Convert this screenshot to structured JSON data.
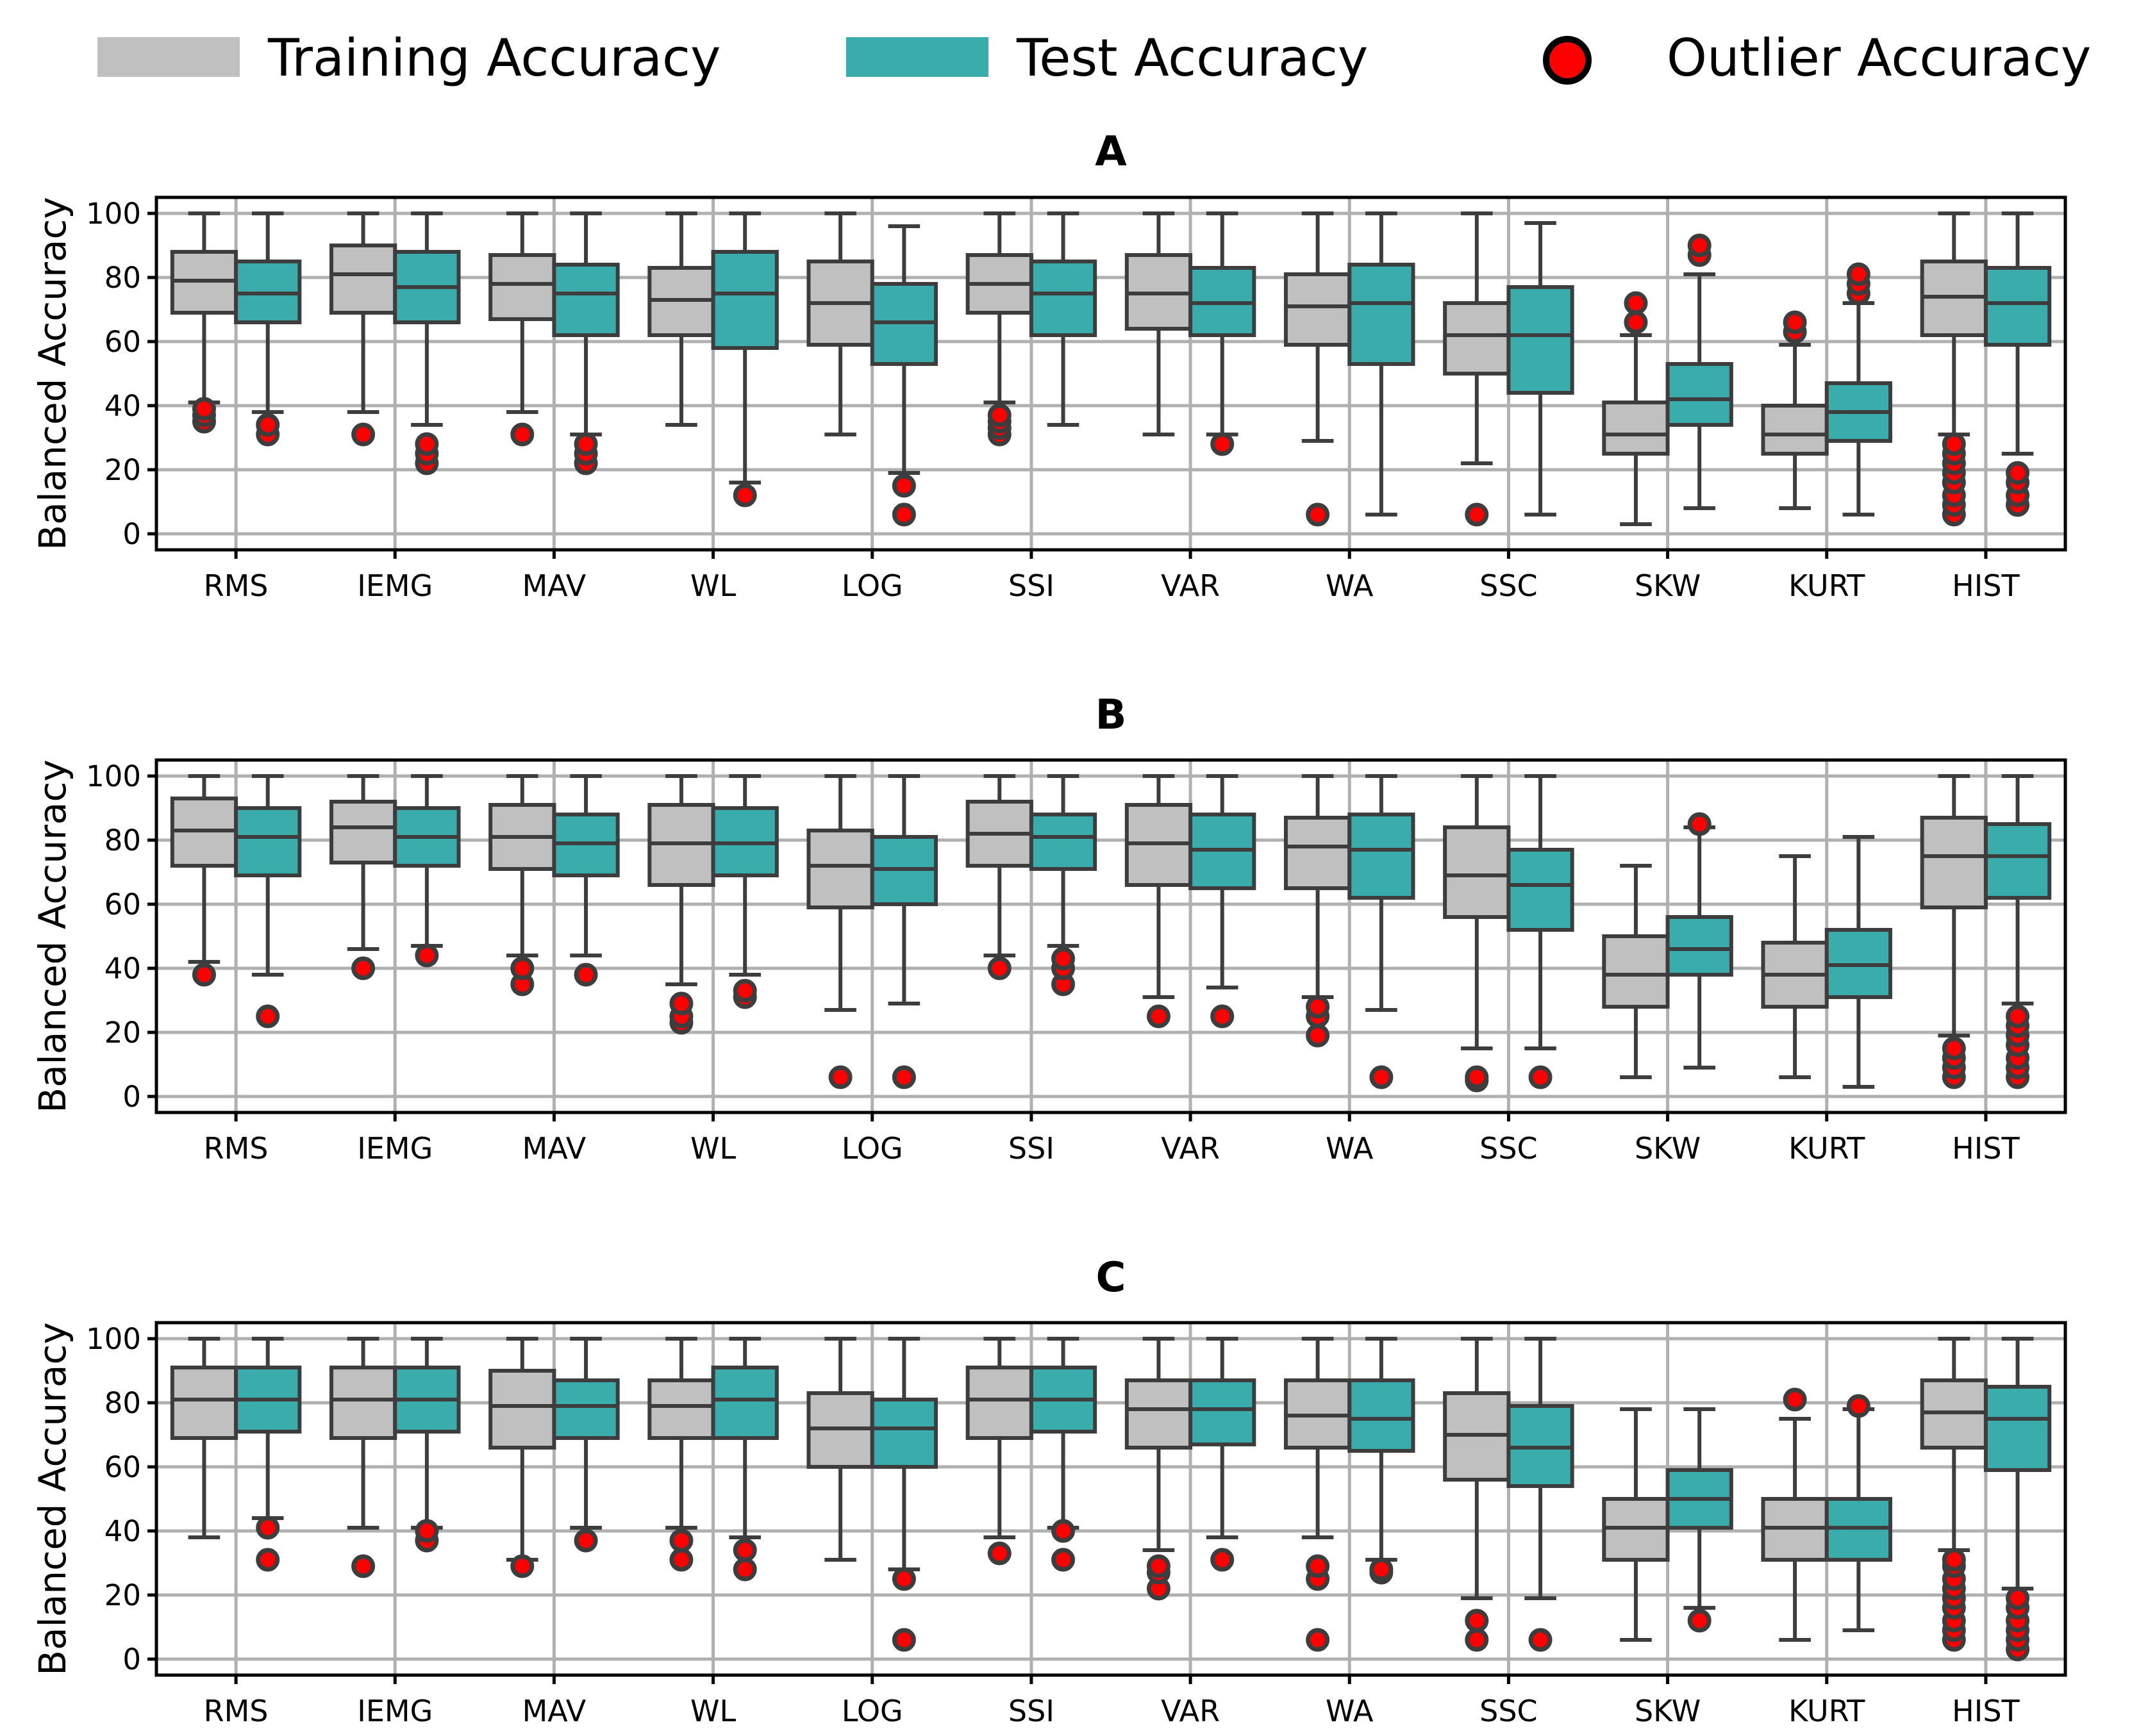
{
  "legend": {
    "train_label": "Training Accuracy",
    "test_label": "Test Accuracy",
    "outlier_label": "Outlier Accuracy"
  },
  "colors": {
    "train": "#c0c0c0",
    "test": "#3aacac",
    "outlier": "#ff0000",
    "line": "#3d3d3d",
    "grid": "#b0b0b0"
  },
  "chart_data": [
    {
      "type": "box",
      "title": "A",
      "ylabel": "Balanced Accuracy",
      "ylim": [
        -5,
        105
      ],
      "yticks": [
        0,
        20,
        40,
        60,
        80,
        100
      ],
      "categories": [
        "RMS",
        "IEMG",
        "MAV",
        "WL",
        "LOG",
        "SSI",
        "VAR",
        "WA",
        "SSC",
        "SKW",
        "KURT",
        "HIST"
      ],
      "series": [
        {
          "name": "Training Accuracy",
          "boxes": [
            {
              "lo": 41,
              "q1": 69,
              "med": 79,
              "q3": 88,
              "hi": 100,
              "out": [
                35,
                37,
                39
              ]
            },
            {
              "lo": 38,
              "q1": 69,
              "med": 81,
              "q3": 90,
              "hi": 100,
              "out": [
                31
              ]
            },
            {
              "lo": 38,
              "q1": 67,
              "med": 78,
              "q3": 87,
              "hi": 100,
              "out": [
                31
              ]
            },
            {
              "lo": 34,
              "q1": 62,
              "med": 73,
              "q3": 83,
              "hi": 100,
              "out": []
            },
            {
              "lo": 31,
              "q1": 59,
              "med": 72,
              "q3": 85,
              "hi": 100,
              "out": []
            },
            {
              "lo": 41,
              "q1": 69,
              "med": 78,
              "q3": 87,
              "hi": 100,
              "out": [
                31,
                33,
                35,
                37
              ]
            },
            {
              "lo": 31,
              "q1": 64,
              "med": 75,
              "q3": 87,
              "hi": 100,
              "out": []
            },
            {
              "lo": 29,
              "q1": 59,
              "med": 71,
              "q3": 81,
              "hi": 100,
              "out": [
                6
              ]
            },
            {
              "lo": 22,
              "q1": 50,
              "med": 62,
              "q3": 72,
              "hi": 100,
              "out": [
                6
              ]
            },
            {
              "lo": 3,
              "q1": 25,
              "med": 31,
              "q3": 41,
              "hi": 62,
              "out": [
                66,
                72
              ]
            },
            {
              "lo": 8,
              "q1": 25,
              "med": 31,
              "q3": 40,
              "hi": 59,
              "out": [
                63,
                66
              ]
            },
            {
              "lo": 31,
              "q1": 62,
              "med": 74,
              "q3": 85,
              "hi": 100,
              "out": [
                6,
                9,
                12,
                16,
                19,
                22,
                25,
                28
              ]
            }
          ]
        },
        {
          "name": "Test Accuracy",
          "boxes": [
            {
              "lo": 38,
              "q1": 66,
              "med": 75,
              "q3": 85,
              "hi": 100,
              "out": [
                31,
                34
              ]
            },
            {
              "lo": 34,
              "q1": 66,
              "med": 77,
              "q3": 88,
              "hi": 100,
              "out": [
                22,
                25,
                28
              ]
            },
            {
              "lo": 31,
              "q1": 62,
              "med": 75,
              "q3": 84,
              "hi": 100,
              "out": [
                22,
                25,
                28
              ]
            },
            {
              "lo": 16,
              "q1": 58,
              "med": 75,
              "q3": 88,
              "hi": 100,
              "out": [
                12
              ]
            },
            {
              "lo": 19,
              "q1": 53,
              "med": 66,
              "q3": 78,
              "hi": 96,
              "out": [
                6,
                15
              ]
            },
            {
              "lo": 34,
              "q1": 62,
              "med": 75,
              "q3": 85,
              "hi": 100,
              "out": []
            },
            {
              "lo": 31,
              "q1": 62,
              "med": 72,
              "q3": 83,
              "hi": 100,
              "out": [
                28
              ]
            },
            {
              "lo": 6,
              "q1": 53,
              "med": 72,
              "q3": 84,
              "hi": 100,
              "out": []
            },
            {
              "lo": 6,
              "q1": 44,
              "med": 62,
              "q3": 77,
              "hi": 97,
              "out": []
            },
            {
              "lo": 8,
              "q1": 34,
              "med": 42,
              "q3": 53,
              "hi": 81,
              "out": [
                87,
                90
              ]
            },
            {
              "lo": 6,
              "q1": 29,
              "med": 38,
              "q3": 47,
              "hi": 72,
              "out": [
                75,
                78,
                81
              ]
            },
            {
              "lo": 25,
              "q1": 59,
              "med": 72,
              "q3": 83,
              "hi": 100,
              "out": [
                9,
                12,
                16,
                19
              ]
            }
          ]
        }
      ]
    },
    {
      "type": "box",
      "title": "B",
      "ylabel": "Balanced Accuracy",
      "ylim": [
        -5,
        105
      ],
      "yticks": [
        0,
        20,
        40,
        60,
        80,
        100
      ],
      "categories": [
        "RMS",
        "IEMG",
        "MAV",
        "WL",
        "LOG",
        "SSI",
        "VAR",
        "WA",
        "SSC",
        "SKW",
        "KURT",
        "HIST"
      ],
      "series": [
        {
          "name": "Training Accuracy",
          "boxes": [
            {
              "lo": 42,
              "q1": 72,
              "med": 83,
              "q3": 93,
              "hi": 100,
              "out": [
                38
              ]
            },
            {
              "lo": 46,
              "q1": 73,
              "med": 84,
              "q3": 92,
              "hi": 100,
              "out": [
                40
              ]
            },
            {
              "lo": 44,
              "q1": 71,
              "med": 81,
              "q3": 91,
              "hi": 100,
              "out": [
                35,
                40
              ]
            },
            {
              "lo": 35,
              "q1": 66,
              "med": 79,
              "q3": 91,
              "hi": 100,
              "out": [
                23,
                25,
                29
              ]
            },
            {
              "lo": 27,
              "q1": 59,
              "med": 72,
              "q3": 83,
              "hi": 100,
              "out": [
                6
              ]
            },
            {
              "lo": 44,
              "q1": 72,
              "med": 82,
              "q3": 92,
              "hi": 100,
              "out": [
                40
              ]
            },
            {
              "lo": 31,
              "q1": 66,
              "med": 79,
              "q3": 91,
              "hi": 100,
              "out": [
                25
              ]
            },
            {
              "lo": 31,
              "q1": 65,
              "med": 78,
              "q3": 87,
              "hi": 100,
              "out": [
                19,
                25,
                28
              ]
            },
            {
              "lo": 15,
              "q1": 56,
              "med": 69,
              "q3": 84,
              "hi": 100,
              "out": [
                5,
                6
              ]
            },
            {
              "lo": 6,
              "q1": 28,
              "med": 38,
              "q3": 50,
              "hi": 72,
              "out": []
            },
            {
              "lo": 6,
              "q1": 28,
              "med": 38,
              "q3": 48,
              "hi": 75,
              "out": []
            },
            {
              "lo": 19,
              "q1": 59,
              "med": 75,
              "q3": 87,
              "hi": 100,
              "out": [
                6,
                9,
                12,
                15
              ]
            }
          ]
        },
        {
          "name": "Test Accuracy",
          "boxes": [
            {
              "lo": 38,
              "q1": 69,
              "med": 81,
              "q3": 90,
              "hi": 100,
              "out": [
                25
              ]
            },
            {
              "lo": 47,
              "q1": 72,
              "med": 81,
              "q3": 90,
              "hi": 100,
              "out": [
                44
              ]
            },
            {
              "lo": 44,
              "q1": 69,
              "med": 79,
              "q3": 88,
              "hi": 100,
              "out": [
                38
              ]
            },
            {
              "lo": 38,
              "q1": 69,
              "med": 79,
              "q3": 90,
              "hi": 100,
              "out": [
                31,
                33
              ]
            },
            {
              "lo": 29,
              "q1": 60,
              "med": 71,
              "q3": 81,
              "hi": 100,
              "out": [
                6
              ]
            },
            {
              "lo": 47,
              "q1": 71,
              "med": 81,
              "q3": 88,
              "hi": 100,
              "out": [
                35,
                40,
                43
              ]
            },
            {
              "lo": 34,
              "q1": 65,
              "med": 77,
              "q3": 88,
              "hi": 100,
              "out": [
                25
              ]
            },
            {
              "lo": 27,
              "q1": 62,
              "med": 77,
              "q3": 88,
              "hi": 100,
              "out": [
                6
              ]
            },
            {
              "lo": 15,
              "q1": 52,
              "med": 66,
              "q3": 77,
              "hi": 100,
              "out": [
                6
              ]
            },
            {
              "lo": 9,
              "q1": 38,
              "med": 46,
              "q3": 56,
              "hi": 84,
              "out": [
                85
              ]
            },
            {
              "lo": 3,
              "q1": 31,
              "med": 41,
              "q3": 52,
              "hi": 81,
              "out": []
            },
            {
              "lo": 29,
              "q1": 62,
              "med": 75,
              "q3": 85,
              "hi": 100,
              "out": [
                6,
                9,
                12,
                16,
                19,
                22,
                25
              ]
            }
          ]
        }
      ]
    },
    {
      "type": "box",
      "title": "C",
      "ylabel": "Balanced Accuracy",
      "ylim": [
        -5,
        105
      ],
      "yticks": [
        0,
        20,
        40,
        60,
        80,
        100
      ],
      "categories": [
        "RMS",
        "IEMG",
        "MAV",
        "WL",
        "LOG",
        "SSI",
        "VAR",
        "WA",
        "SSC",
        "SKW",
        "KURT",
        "HIST"
      ],
      "series": [
        {
          "name": "Training Accuracy",
          "boxes": [
            {
              "lo": 38,
              "q1": 69,
              "med": 81,
              "q3": 91,
              "hi": 100,
              "out": []
            },
            {
              "lo": 41,
              "q1": 69,
              "med": 81,
              "q3": 91,
              "hi": 100,
              "out": [
                29
              ]
            },
            {
              "lo": 31,
              "q1": 66,
              "med": 79,
              "q3": 90,
              "hi": 100,
              "out": [
                29
              ]
            },
            {
              "lo": 41,
              "q1": 69,
              "med": 79,
              "q3": 87,
              "hi": 100,
              "out": [
                31,
                37
              ]
            },
            {
              "lo": 31,
              "q1": 60,
              "med": 72,
              "q3": 83,
              "hi": 100,
              "out": []
            },
            {
              "lo": 38,
              "q1": 69,
              "med": 81,
              "q3": 91,
              "hi": 100,
              "out": [
                33
              ]
            },
            {
              "lo": 34,
              "q1": 66,
              "med": 78,
              "q3": 87,
              "hi": 100,
              "out": [
                22,
                27,
                29
              ]
            },
            {
              "lo": 38,
              "q1": 66,
              "med": 76,
              "q3": 87,
              "hi": 100,
              "out": [
                6,
                25,
                29
              ]
            },
            {
              "lo": 19,
              "q1": 56,
              "med": 70,
              "q3": 83,
              "hi": 100,
              "out": [
                6,
                12
              ]
            },
            {
              "lo": 6,
              "q1": 31,
              "med": 41,
              "q3": 50,
              "hi": 78,
              "out": []
            },
            {
              "lo": 6,
              "q1": 31,
              "med": 41,
              "q3": 50,
              "hi": 75,
              "out": [
                81
              ]
            },
            {
              "lo": 34,
              "q1": 66,
              "med": 77,
              "q3": 87,
              "hi": 100,
              "out": [
                6,
                9,
                12,
                16,
                19,
                22,
                25,
                29,
                31
              ]
            }
          ]
        },
        {
          "name": "Test Accuracy",
          "boxes": [
            {
              "lo": 44,
              "q1": 71,
              "med": 81,
              "q3": 91,
              "hi": 100,
              "out": [
                31,
                41
              ]
            },
            {
              "lo": 41,
              "q1": 71,
              "med": 81,
              "q3": 91,
              "hi": 100,
              "out": [
                37,
                40
              ]
            },
            {
              "lo": 41,
              "q1": 69,
              "med": 79,
              "q3": 87,
              "hi": 100,
              "out": [
                37
              ]
            },
            {
              "lo": 38,
              "q1": 69,
              "med": 81,
              "q3": 91,
              "hi": 100,
              "out": [
                28,
                34
              ]
            },
            {
              "lo": 28,
              "q1": 60,
              "med": 72,
              "q3": 81,
              "hi": 100,
              "out": [
                6,
                25
              ]
            },
            {
              "lo": 41,
              "q1": 71,
              "med": 81,
              "q3": 91,
              "hi": 100,
              "out": [
                31,
                40
              ]
            },
            {
              "lo": 38,
              "q1": 67,
              "med": 78,
              "q3": 87,
              "hi": 100,
              "out": [
                31
              ]
            },
            {
              "lo": 31,
              "q1": 65,
              "med": 75,
              "q3": 87,
              "hi": 100,
              "out": [
                27,
                28
              ]
            },
            {
              "lo": 19,
              "q1": 54,
              "med": 66,
              "q3": 79,
              "hi": 100,
              "out": [
                6
              ]
            },
            {
              "lo": 16,
              "q1": 41,
              "med": 50,
              "q3": 59,
              "hi": 78,
              "out": [
                12
              ]
            },
            {
              "lo": 9,
              "q1": 31,
              "med": 41,
              "q3": 50,
              "hi": 78,
              "out": [
                79
              ]
            },
            {
              "lo": 22,
              "q1": 59,
              "med": 75,
              "q3": 85,
              "hi": 100,
              "out": [
                3,
                6,
                9,
                12,
                16,
                19
              ]
            }
          ]
        }
      ]
    }
  ]
}
